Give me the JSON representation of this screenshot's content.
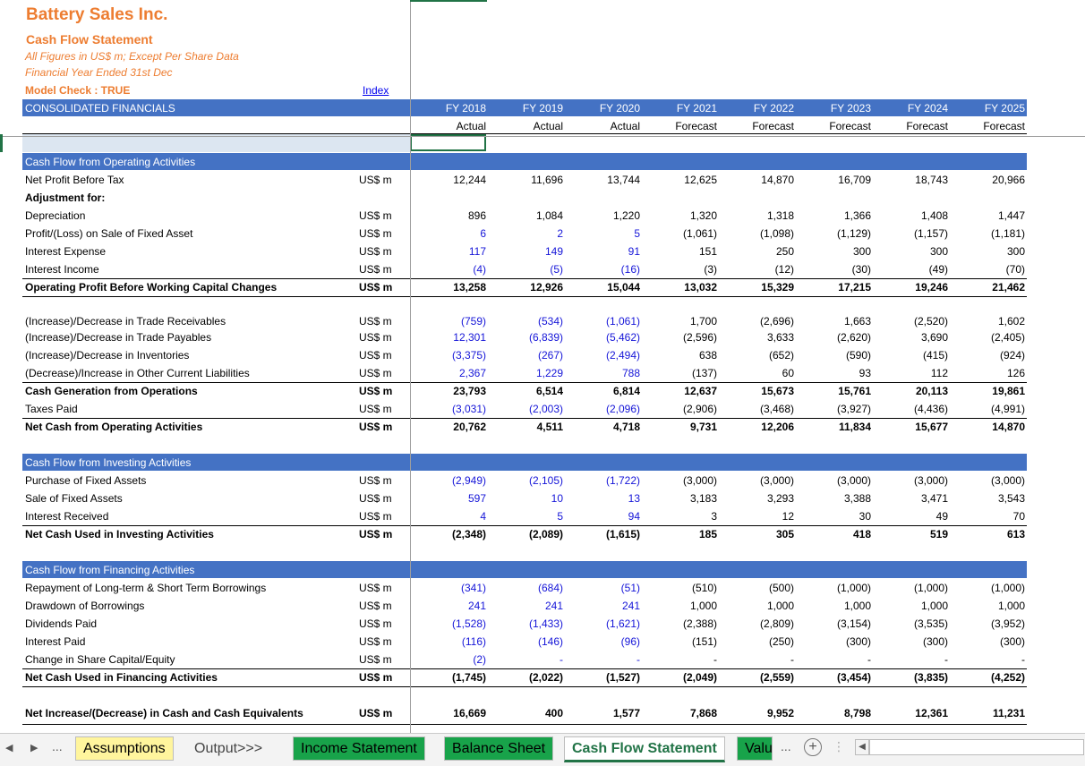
{
  "header": {
    "company": "Battery Sales Inc.",
    "statement": "Cash Flow Statement",
    "note1": "All Figures in US$ m; Except Per Share Data",
    "note2": "Financial Year Ended 31st Dec",
    "model_check": "Model Check : TRUE",
    "index_link": "Index",
    "consolidated": "CONSOLIDATED FINANCIALS"
  },
  "years": [
    "FY 2018",
    "FY 2019",
    "FY 2020",
    "FY 2021",
    "FY 2022",
    "FY 2023",
    "FY 2024",
    "FY 2025"
  ],
  "periods": [
    "Actual",
    "Actual",
    "Actual",
    "Forecast",
    "Forecast",
    "Forecast",
    "Forecast",
    "Forecast"
  ],
  "sections": {
    "operating": "Cash Flow from Operating Activities",
    "investing": "Cash Flow from Investing Activities",
    "financing": "Cash Flow from Financing Activities"
  },
  "rows": [
    {
      "label": "Net Profit Before Tax",
      "unit": "US$ m",
      "values": [
        "12,244",
        "11,696",
        "13,744",
        "12,625",
        "14,870",
        "16,709",
        "18,743",
        "20,966"
      ],
      "blue": [
        false,
        false,
        false,
        false,
        false,
        false,
        false,
        false
      ],
      "bold": false
    },
    {
      "label": "Adjustment for:",
      "unit": "",
      "values": [],
      "blue": [],
      "bold": true
    },
    {
      "label": "Depreciation",
      "unit": "US$ m",
      "values": [
        "896",
        "1,084",
        "1,220",
        "1,320",
        "1,318",
        "1,366",
        "1,408",
        "1,447"
      ],
      "blue": [
        false,
        false,
        false,
        false,
        false,
        false,
        false,
        false
      ],
      "bold": false
    },
    {
      "label": "Profit/(Loss) on Sale of Fixed Asset",
      "unit": "US$ m",
      "values": [
        "6",
        "2",
        "5",
        "(1,061)",
        "(1,098)",
        "(1,129)",
        "(1,157)",
        "(1,181)"
      ],
      "blue": [
        true,
        true,
        true,
        false,
        false,
        false,
        false,
        false
      ],
      "bold": false
    },
    {
      "label": "Interest Expense",
      "unit": "US$ m",
      "values": [
        "117",
        "149",
        "91",
        "151",
        "250",
        "300",
        "300",
        "300"
      ],
      "blue": [
        true,
        true,
        true,
        false,
        false,
        false,
        false,
        false
      ],
      "bold": false
    },
    {
      "label": "Interest Income",
      "unit": "US$ m",
      "values": [
        "(4)",
        "(5)",
        "(16)",
        "(3)",
        "(12)",
        "(30)",
        "(49)",
        "(70)"
      ],
      "blue": [
        true,
        true,
        true,
        false,
        false,
        false,
        false,
        false
      ],
      "bold": false
    },
    {
      "label": "Operating Profit Before Working Capital Changes",
      "unit": "US$ m",
      "values": [
        "13,258",
        "12,926",
        "15,044",
        "13,032",
        "15,329",
        "17,215",
        "19,246",
        "21,462"
      ],
      "blue": [
        false,
        false,
        false,
        false,
        false,
        false,
        false,
        false
      ],
      "bold": true
    },
    {
      "label": "(Increase)/Decrease in Trade Receivables",
      "unit": "US$ m",
      "values": [
        "(759)",
        "(534)",
        "(1,061)",
        "1,700",
        "(2,696)",
        "1,663",
        "(2,520)",
        "1,602"
      ],
      "blue": [
        true,
        true,
        true,
        false,
        false,
        false,
        false,
        false
      ],
      "bold": false
    },
    {
      "label": "(Increase)/Decrease in Trade Payables",
      "unit": "US$ m",
      "values": [
        "12,301",
        "(6,839)",
        "(5,462)",
        "(2,596)",
        "3,633",
        "(2,620)",
        "3,690",
        "(2,405)"
      ],
      "blue": [
        true,
        true,
        true,
        false,
        false,
        false,
        false,
        false
      ],
      "bold": false
    },
    {
      "label": "(Increase)/Decrease in Inventories",
      "unit": "US$ m",
      "values": [
        "(3,375)",
        "(267)",
        "(2,494)",
        "638",
        "(652)",
        "(590)",
        "(415)",
        "(924)"
      ],
      "blue": [
        true,
        true,
        true,
        false,
        false,
        false,
        false,
        false
      ],
      "bold": false
    },
    {
      "label": "(Decrease)/Increase in Other Current Liabilities",
      "unit": "US$ m",
      "values": [
        "2,367",
        "1,229",
        "788",
        "(137)",
        "60",
        "93",
        "112",
        "126"
      ],
      "blue": [
        true,
        true,
        true,
        false,
        false,
        false,
        false,
        false
      ],
      "bold": false
    },
    {
      "label": "Cash Generation from Operations",
      "unit": "US$ m",
      "values": [
        "23,793",
        "6,514",
        "6,814",
        "12,637",
        "15,673",
        "15,761",
        "20,113",
        "19,861"
      ],
      "blue": [
        false,
        false,
        false,
        false,
        false,
        false,
        false,
        false
      ],
      "bold": true
    },
    {
      "label": "Taxes Paid",
      "unit": "US$ m",
      "values": [
        "(3,031)",
        "(2,003)",
        "(2,096)",
        "(2,906)",
        "(3,468)",
        "(3,927)",
        "(4,436)",
        "(4,991)"
      ],
      "blue": [
        true,
        true,
        true,
        false,
        false,
        false,
        false,
        false
      ],
      "bold": false
    },
    {
      "label": "Net Cash from Operating Activities",
      "unit": "US$ m",
      "values": [
        "20,762",
        "4,511",
        "4,718",
        "9,731",
        "12,206",
        "11,834",
        "15,677",
        "14,870"
      ],
      "blue": [
        false,
        false,
        false,
        false,
        false,
        false,
        false,
        false
      ],
      "bold": true
    },
    {
      "label": "Purchase of Fixed Assets",
      "unit": "US$ m",
      "values": [
        "(2,949)",
        "(2,105)",
        "(1,722)",
        "(3,000)",
        "(3,000)",
        "(3,000)",
        "(3,000)",
        "(3,000)"
      ],
      "blue": [
        true,
        true,
        true,
        false,
        false,
        false,
        false,
        false
      ],
      "bold": false
    },
    {
      "label": "Sale of Fixed Assets",
      "unit": "US$ m",
      "values": [
        "597",
        "10",
        "13",
        "3,183",
        "3,293",
        "3,388",
        "3,471",
        "3,543"
      ],
      "blue": [
        true,
        true,
        true,
        false,
        false,
        false,
        false,
        false
      ],
      "bold": false
    },
    {
      "label": "Interest Received",
      "unit": "US$ m",
      "values": [
        "4",
        "5",
        "94",
        "3",
        "12",
        "30",
        "49",
        "70"
      ],
      "blue": [
        true,
        true,
        true,
        false,
        false,
        false,
        false,
        false
      ],
      "bold": false
    },
    {
      "label": "Net Cash Used in Investing Activities",
      "unit": "US$ m",
      "values": [
        "(2,348)",
        "(2,089)",
        "(1,615)",
        "185",
        "305",
        "418",
        "519",
        "613"
      ],
      "blue": [
        false,
        false,
        false,
        false,
        false,
        false,
        false,
        false
      ],
      "bold": true
    },
    {
      "label": "Repayment of Long-term & Short Term Borrowings",
      "unit": "US$ m",
      "values": [
        "(341)",
        "(684)",
        "(51)",
        "(510)",
        "(500)",
        "(1,000)",
        "(1,000)",
        "(1,000)"
      ],
      "blue": [
        true,
        true,
        true,
        false,
        false,
        false,
        false,
        false
      ],
      "bold": false
    },
    {
      "label": "Drawdown of Borrowings",
      "unit": "US$ m",
      "values": [
        "241",
        "241",
        "241",
        "1,000",
        "1,000",
        "1,000",
        "1,000",
        "1,000"
      ],
      "blue": [
        true,
        true,
        true,
        false,
        false,
        false,
        false,
        false
      ],
      "bold": false
    },
    {
      "label": "Dividends Paid",
      "unit": "US$ m",
      "values": [
        "(1,528)",
        "(1,433)",
        "(1,621)",
        "(2,388)",
        "(2,809)",
        "(3,154)",
        "(3,535)",
        "(3,952)"
      ],
      "blue": [
        true,
        true,
        true,
        false,
        false,
        false,
        false,
        false
      ],
      "bold": false
    },
    {
      "label": "Interest Paid",
      "unit": "US$ m",
      "values": [
        "(116)",
        "(146)",
        "(96)",
        "(151)",
        "(250)",
        "(300)",
        "(300)",
        "(300)"
      ],
      "blue": [
        true,
        true,
        true,
        false,
        false,
        false,
        false,
        false
      ],
      "bold": false
    },
    {
      "label": "Change in Share Capital/Equity",
      "unit": "US$ m",
      "values": [
        "(2)",
        "-",
        "-",
        "-",
        "-",
        "-",
        "-",
        "-"
      ],
      "blue": [
        true,
        true,
        true,
        false,
        false,
        false,
        false,
        false
      ],
      "bold": false
    },
    {
      "label": "Net Cash Used in Financing Activities",
      "unit": "US$ m",
      "values": [
        "(1,745)",
        "(2,022)",
        "(1,527)",
        "(2,049)",
        "(2,559)",
        "(3,454)",
        "(3,835)",
        "(4,252)"
      ],
      "blue": [
        false,
        false,
        false,
        false,
        false,
        false,
        false,
        false
      ],
      "bold": true
    },
    {
      "label": "Net Increase/(Decrease) in Cash and Cash Equivalents",
      "unit": "US$ m",
      "values": [
        "16,669",
        "400",
        "1,577",
        "7,868",
        "9,952",
        "8,798",
        "12,361",
        "11,231"
      ],
      "blue": [
        false,
        false,
        false,
        false,
        false,
        false,
        false,
        false
      ],
      "bold": true
    }
  ],
  "tabs": {
    "more_left": "...",
    "assumptions": "Assumptions",
    "output": "Output>>>",
    "income": "Income Statement",
    "balance": "Balance Sheet",
    "cashflow": "Cash Flow Statement",
    "valuation": "Valu",
    "more_right": "...",
    "add": "+"
  },
  "colors": {
    "accent_bar": "#4472C4",
    "title_orange": "#ED7D31",
    "input_blue": "#1515D8",
    "tab_green": "#18A34A",
    "tab_yellow": "#FFF59D"
  }
}
